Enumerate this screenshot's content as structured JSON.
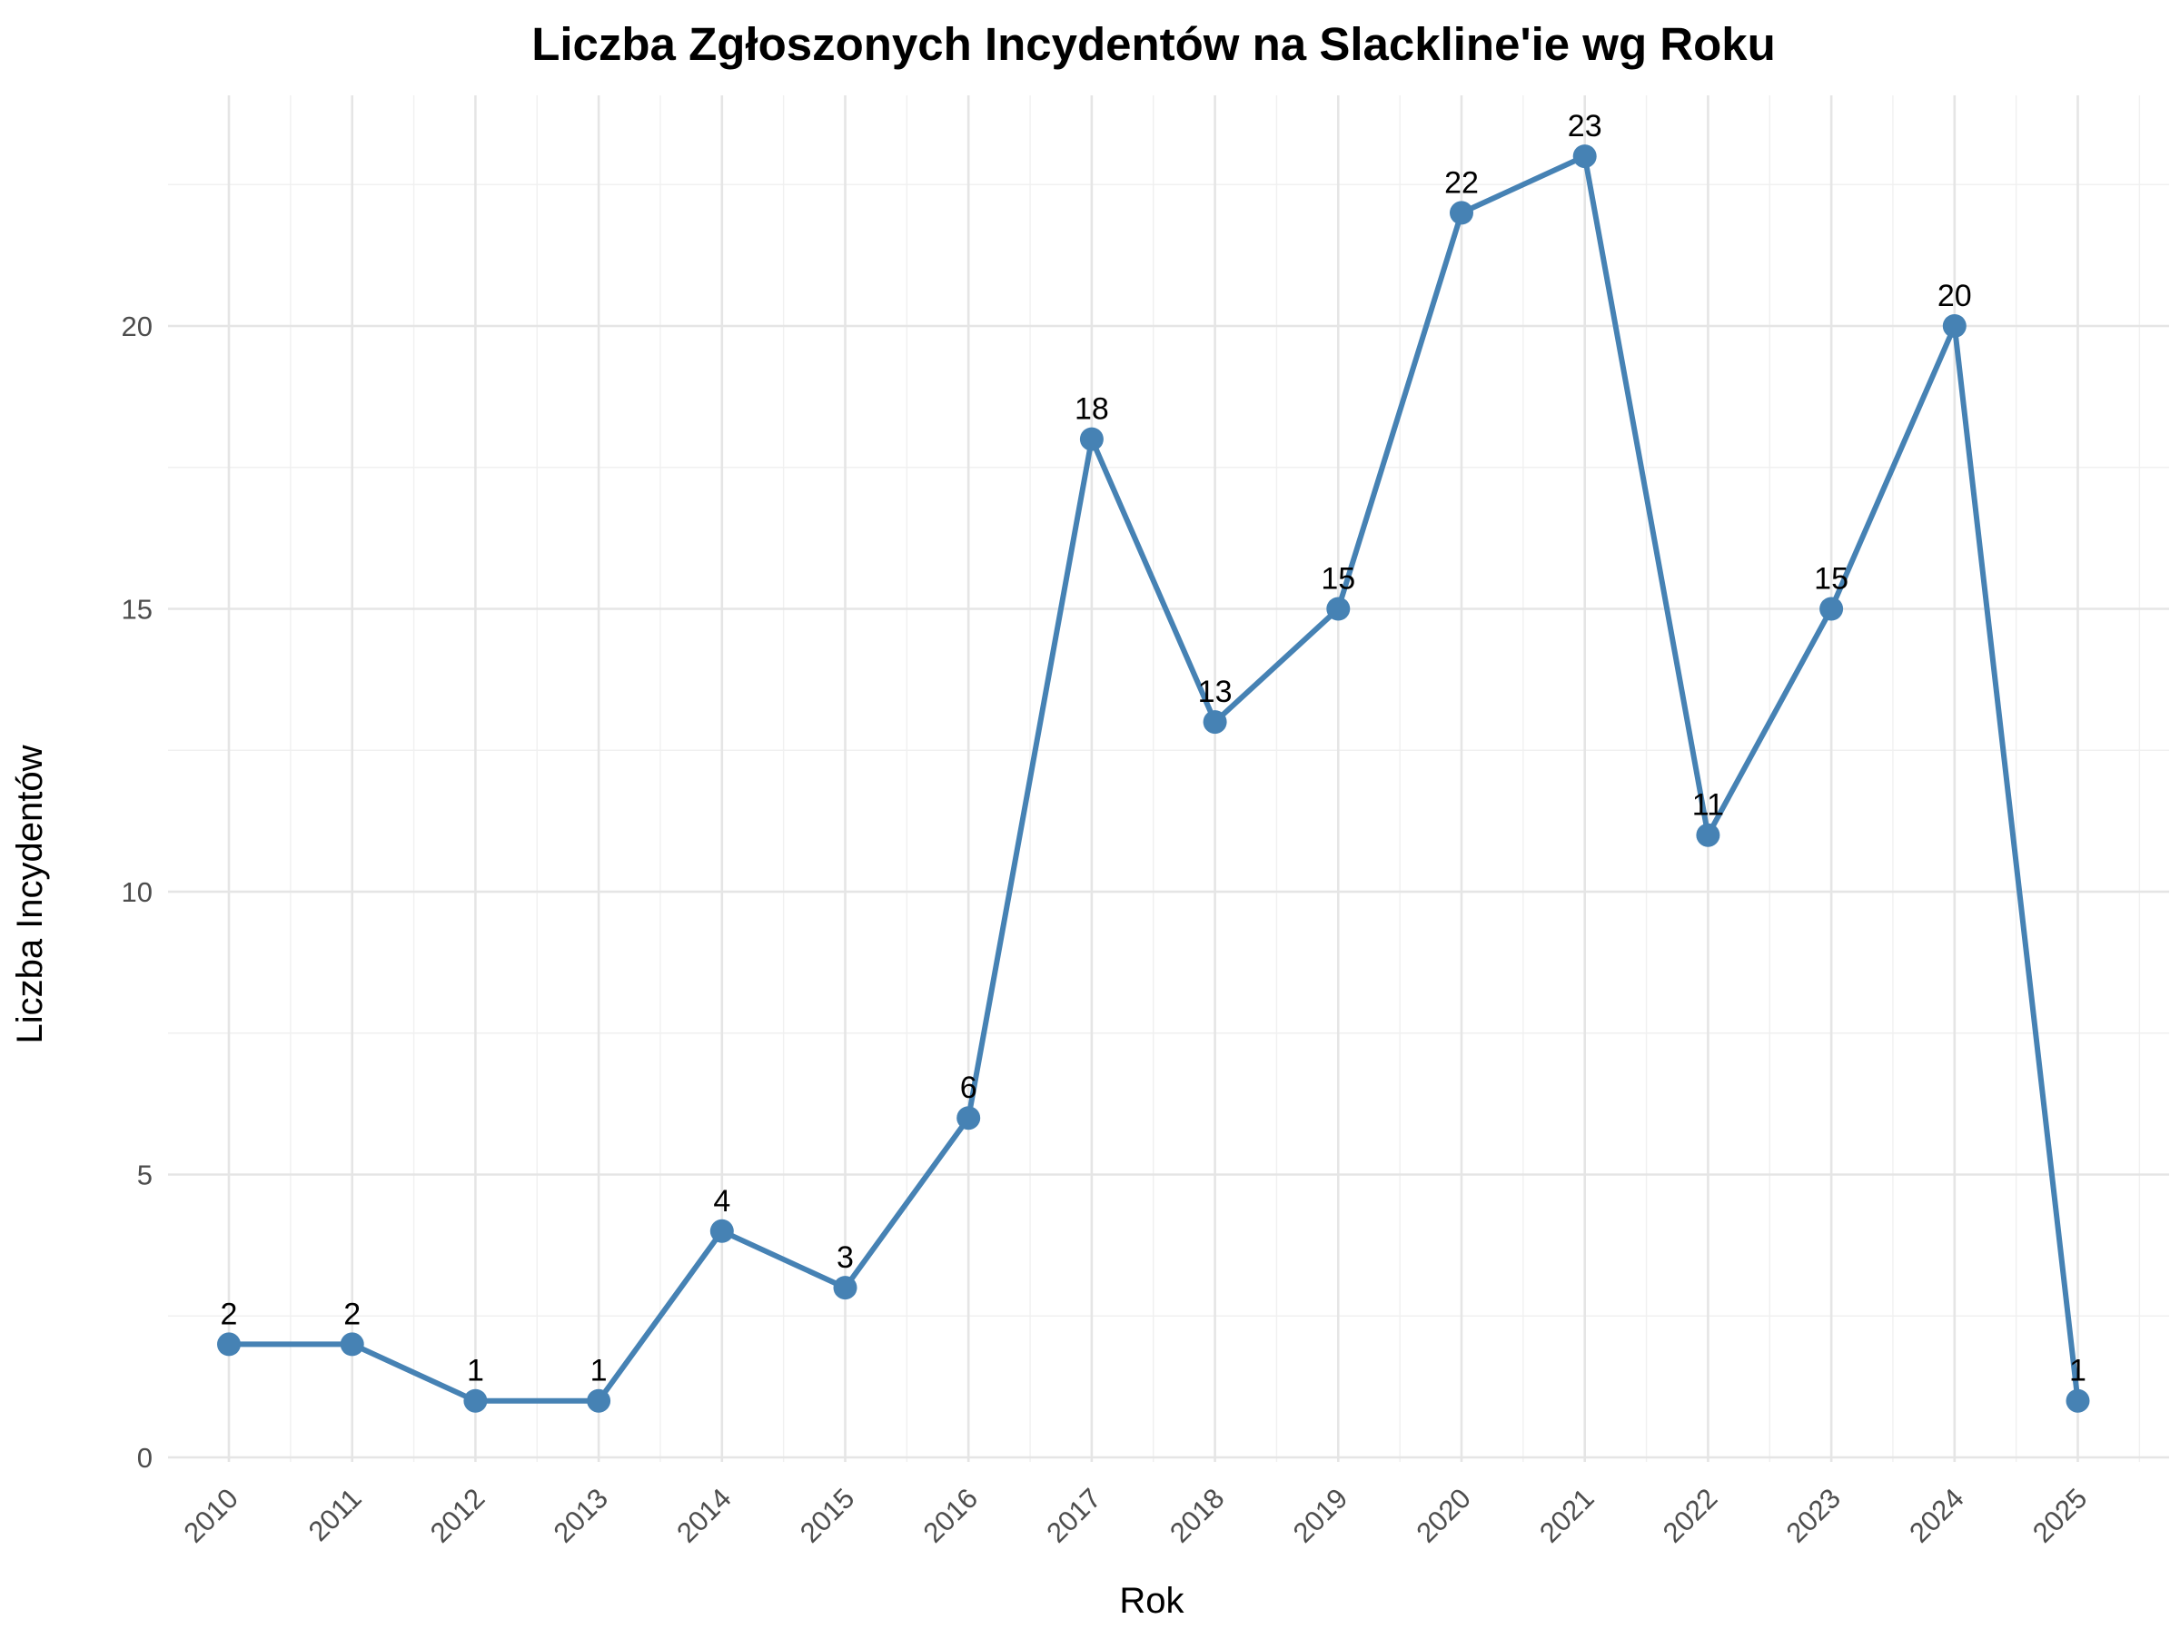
{
  "chart_data": {
    "type": "line",
    "title": "Liczba Zgłoszonych Incydentów na Slackline'ie wg Roku",
    "xlabel": "Rok",
    "ylabel": "Liczba Incydentów",
    "x": [
      2010,
      2011,
      2012,
      2013,
      2014,
      2015,
      2016,
      2017,
      2018,
      2019,
      2020,
      2021,
      2022,
      2023,
      2024,
      2025
    ],
    "series": [
      {
        "values": [
          2,
          2,
          1,
          1,
          4,
          3,
          6,
          18,
          13,
          15,
          22,
          23,
          11,
          15,
          20,
          1
        ],
        "color": "#4682B4"
      }
    ],
    "x_tick_labels": [
      "2010",
      "2011",
      "2012",
      "2013",
      "2014",
      "2015",
      "2016",
      "2017",
      "2018",
      "2019",
      "2020",
      "2021",
      "2022",
      "2023",
      "2024",
      "2025"
    ],
    "y_ticks": [
      0,
      5,
      10,
      15,
      20
    ],
    "ylim": [
      0,
      23
    ],
    "data_labels": true,
    "grid": true,
    "legend": "none"
  }
}
